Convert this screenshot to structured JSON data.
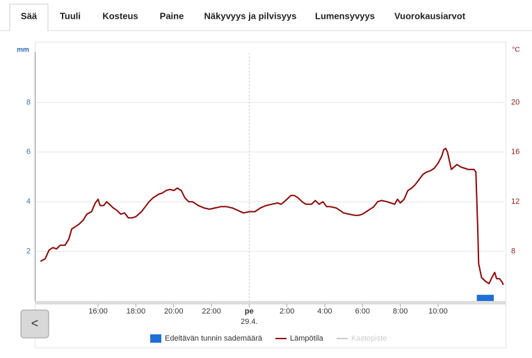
{
  "tabs": [
    "Sää",
    "Tuuli",
    "Kosteus",
    "Paine",
    "Näkyvyys ja pilvisyys",
    "Lumensyvyys",
    "Vuorokausiarvot"
  ],
  "active_tab": 0,
  "back_button": "<",
  "chart_data": {
    "type": "combo",
    "y_label": "mm",
    "y2_label": "°C",
    "xlim": [
      12.72,
      37.5
    ],
    "xticks": [
      {
        "value": 16,
        "label": "16:00"
      },
      {
        "value": 18,
        "label": "18:00"
      },
      {
        "value": 20,
        "label": "20:00"
      },
      {
        "value": 22,
        "label": "22:00"
      },
      {
        "value": 24,
        "label": "pe",
        "date": "29.4."
      },
      {
        "value": 26,
        "label": "2:00"
      },
      {
        "value": 28,
        "label": "4:00"
      },
      {
        "value": 30,
        "label": "6:00"
      },
      {
        "value": 32,
        "label": "8:00"
      },
      {
        "value": 34,
        "label": "10:00"
      }
    ],
    "ylim": [
      0,
      10
    ],
    "yticks": [
      2,
      4,
      6,
      8
    ],
    "y2lim": [
      4,
      24
    ],
    "y2ticks": [
      8,
      12,
      16,
      20
    ],
    "grid": true,
    "legend": "bottom",
    "series": [
      {
        "name": "Edeltävän tunnin sademäärä",
        "kind": "bar",
        "color": "#1f6fd6",
        "axis": "y",
        "x": [
          36.5
        ],
        "values": [
          0.25
        ]
      },
      {
        "name": "Lämpötila",
        "kind": "line",
        "color": "#8b0a0a",
        "axis": "y2",
        "x": [
          12.95,
          13.2,
          13.4,
          13.6,
          13.8,
          14.0,
          14.25,
          14.45,
          14.6,
          14.8,
          15.0,
          15.2,
          15.4,
          15.65,
          15.85,
          16.0,
          16.1,
          16.3,
          16.45,
          16.6,
          16.8,
          17.0,
          17.2,
          17.4,
          17.6,
          17.8,
          18.0,
          18.3,
          18.5,
          18.7,
          18.9,
          19.2,
          19.4,
          19.6,
          19.8,
          20.0,
          20.2,
          20.4,
          20.6,
          20.8,
          21.0,
          21.3,
          21.6,
          21.9,
          22.2,
          22.5,
          22.8,
          23.1,
          23.4,
          23.7,
          24.0,
          24.3,
          24.6,
          24.9,
          25.2,
          25.5,
          25.7,
          26.0,
          26.2,
          26.4,
          26.6,
          26.8,
          27.0,
          27.3,
          27.5,
          27.7,
          27.9,
          28.1,
          28.3,
          28.6,
          28.8,
          29.0,
          29.3,
          29.6,
          29.8,
          30.0,
          30.2,
          30.4,
          30.6,
          30.8,
          31.0,
          31.3,
          31.5,
          31.7,
          31.85,
          32.0,
          32.2,
          32.4,
          32.6,
          32.8,
          33.0,
          33.2,
          33.4,
          33.6,
          33.8,
          34.0,
          34.2,
          34.3,
          34.4,
          34.5,
          34.6,
          34.7,
          34.85,
          35.0,
          35.2,
          35.4,
          35.6,
          35.8,
          35.9,
          36.0,
          36.1,
          36.15,
          36.3,
          36.5,
          36.7,
          36.85,
          37.0,
          37.1,
          37.25,
          37.4,
          37.45
        ],
        "values": [
          7.2,
          7.4,
          8.1,
          8.3,
          8.2,
          8.5,
          8.5,
          9.0,
          9.8,
          10.0,
          10.2,
          10.5,
          11.0,
          11.2,
          11.9,
          12.2,
          11.7,
          11.7,
          12.0,
          11.8,
          11.5,
          11.3,
          11.0,
          11.1,
          10.7,
          10.7,
          10.8,
          11.2,
          11.6,
          12.0,
          12.3,
          12.6,
          12.7,
          12.9,
          13.0,
          12.9,
          13.1,
          12.9,
          12.3,
          12.0,
          12.0,
          11.7,
          11.5,
          11.4,
          11.5,
          11.6,
          11.6,
          11.5,
          11.3,
          11.1,
          11.2,
          11.2,
          11.5,
          11.7,
          11.8,
          11.9,
          11.8,
          12.2,
          12.5,
          12.5,
          12.3,
          12.0,
          11.8,
          11.8,
          12.1,
          11.8,
          12.0,
          11.6,
          11.6,
          11.5,
          11.3,
          11.1,
          11.0,
          10.9,
          10.9,
          11.0,
          11.2,
          11.4,
          11.6,
          12.0,
          12.1,
          12.0,
          11.9,
          11.8,
          12.2,
          11.9,
          12.2,
          12.9,
          13.1,
          13.4,
          13.8,
          14.2,
          14.4,
          14.5,
          14.7,
          15.1,
          15.7,
          16.2,
          16.3,
          16.0,
          15.3,
          14.6,
          14.8,
          15.0,
          14.8,
          14.7,
          14.6,
          14.6,
          14.6,
          14.4,
          9.8,
          7.0,
          5.9,
          5.6,
          5.4,
          5.9,
          6.3,
          5.8,
          5.8,
          5.5,
          5.3
        ]
      },
      {
        "name": "Kastepiste",
        "kind": "line",
        "color": "#cccccc",
        "axis": "y2",
        "hidden": true,
        "x": [],
        "values": []
      }
    ]
  }
}
